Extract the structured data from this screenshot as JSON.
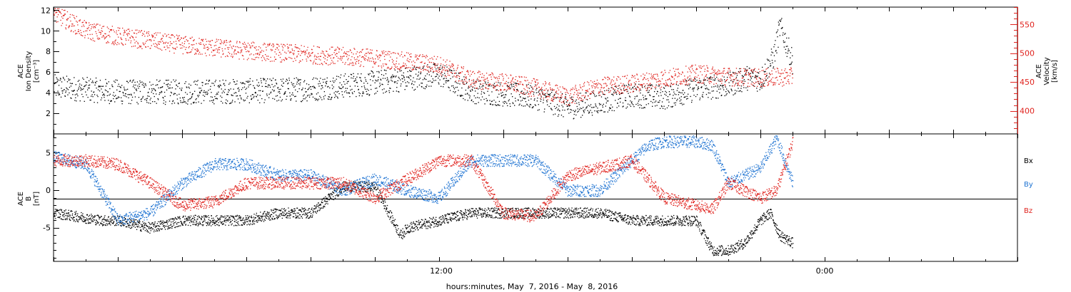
{
  "xlabel": "hours:minutes, May  7, 2016 - May  8, 2016",
  "x_tick_labels": [
    "12:00",
    "0:00"
  ],
  "colors": {
    "black": "#000000",
    "red": "#e0231e",
    "blue": "#1e73d2"
  },
  "chart_data": [
    {
      "type": "scatter",
      "panel": "top",
      "ylabel_left": [
        "ACE",
        "Ion Density",
        "[cm⁻³]"
      ],
      "ylabel_right": [
        "ACE",
        "Velocity",
        "[km/s]"
      ],
      "ylim_left": [
        0,
        12.3
      ],
      "ylim_right": [
        360,
        580
      ],
      "yticks_left": [
        "2",
        "4",
        "6",
        "8",
        "10",
        "12"
      ],
      "yticks_right": [
        "400",
        "450",
        "500",
        "550"
      ],
      "grid": false,
      "series": [
        {
          "axis": "left",
          "color": "black",
          "x_hours": [
            0,
            2,
            4,
            6,
            8,
            10,
            12,
            13,
            14,
            15,
            16,
            17,
            18,
            19,
            20,
            21,
            21.6,
            22,
            22.4,
            22.6,
            23
          ],
          "values": [
            4.6,
            4.1,
            4.1,
            4.2,
            4.4,
            5.0,
            5.8,
            4.2,
            3.9,
            3.6,
            2.6,
            3.2,
            3.8,
            3.6,
            4.4,
            4.8,
            5.5,
            5.3,
            7.5,
            10.5,
            7.0
          ]
        },
        {
          "axis": "right",
          "color": "red",
          "x_hours": [
            0,
            1,
            2,
            4,
            6,
            8,
            10,
            12,
            13,
            14,
            15,
            16,
            17,
            18,
            19,
            20,
            21,
            22,
            23
          ],
          "values": [
            570,
            540,
            530,
            515,
            505,
            498,
            492,
            480,
            455,
            450,
            440,
            425,
            443,
            448,
            457,
            465,
            460,
            458,
            460
          ]
        }
      ]
    },
    {
      "type": "scatter",
      "panel": "bottom",
      "ylabel_left": [
        "ACE",
        "B",
        "[nT]"
      ],
      "ylim": [
        -9.5,
        7.5
      ],
      "yticks": [
        "-5",
        "0",
        "5"
      ],
      "zero_line": true,
      "legend": [
        "Bx",
        "By",
        "Bz"
      ],
      "legend_placement": "right",
      "series": [
        {
          "name": "Bx",
          "color": "black",
          "x_hours": [
            0,
            1.5,
            2,
            3,
            4,
            5,
            6,
            7,
            8,
            9,
            10,
            10.8,
            11,
            12,
            13,
            14,
            15,
            16,
            17,
            18,
            19,
            20,
            20.5,
            21,
            21.5,
            22,
            22.3,
            22.6,
            23
          ],
          "values": [
            -3,
            -4,
            -4,
            -5,
            -4,
            -4,
            -4,
            -3,
            -3,
            0.5,
            0.5,
            -6,
            -5,
            -4,
            -3,
            -3,
            -3,
            -3,
            -3,
            -4,
            -4,
            -4,
            -8,
            -8,
            -7,
            -4,
            -3,
            -6,
            -7
          ]
        },
        {
          "name": "By",
          "color": "blue",
          "x_hours": [
            0,
            1,
            2,
            3,
            4,
            5,
            6,
            7,
            8,
            9,
            10,
            11,
            12,
            13,
            14,
            15,
            16,
            17,
            18,
            18.5,
            19,
            20,
            20.5,
            21,
            22,
            22.5,
            23
          ],
          "values": [
            4.5,
            3.5,
            -4,
            -3,
            1,
            3.5,
            3.5,
            2,
            2,
            0,
            1.5,
            0,
            -1,
            4,
            4,
            4,
            0,
            0,
            4,
            6,
            6.5,
            6.5,
            6,
            1,
            3,
            7,
            1
          ]
        },
        {
          "name": "Bz",
          "color": "red",
          "x_hours": [
            0,
            1,
            2,
            3,
            4,
            5,
            6,
            7,
            8,
            9,
            10,
            11,
            12,
            13,
            14,
            15,
            16,
            17,
            18,
            19,
            20,
            20.5,
            21,
            22,
            22.5,
            23
          ],
          "values": [
            4,
            4,
            3.5,
            1,
            -2,
            -1.5,
            1,
            1,
            1,
            1,
            -1,
            1.5,
            4,
            4,
            -3,
            -3.5,
            2,
            3,
            4,
            -1,
            -2,
            -2.5,
            1,
            -1,
            0,
            6.5
          ]
        }
      ]
    }
  ]
}
